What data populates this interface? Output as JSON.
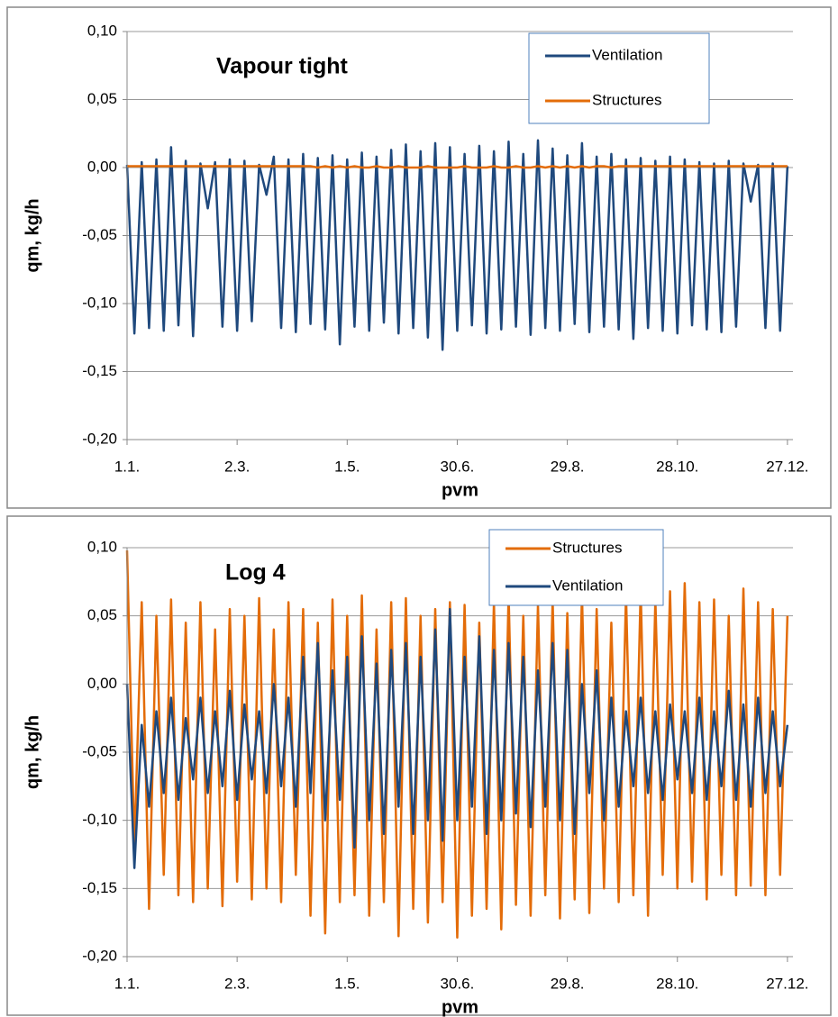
{
  "chart_data": [
    {
      "type": "line",
      "title": "Vapour tight",
      "xlabel": "pvm",
      "ylabel": "qm, kg/h",
      "grid": true,
      "legend": "upper right",
      "xlim": [
        0,
        363
      ],
      "ylim": [
        -0.2,
        0.1
      ],
      "xticks": [
        {
          "value": 0,
          "label": "1.1."
        },
        {
          "value": 60,
          "label": "2.3."
        },
        {
          "value": 120,
          "label": "1.5."
        },
        {
          "value": 180,
          "label": "30.6."
        },
        {
          "value": 240,
          "label": "29.8."
        },
        {
          "value": 300,
          "label": "28.10."
        },
        {
          "value": 360,
          "label": "27.12."
        }
      ],
      "yticks": [
        {
          "value": -0.2,
          "label": "-0,20"
        },
        {
          "value": -0.15,
          "label": "-0,15"
        },
        {
          "value": -0.1,
          "label": "-0,10"
        },
        {
          "value": -0.05,
          "label": "-0,05"
        },
        {
          "value": 0,
          "label": "0,00"
        },
        {
          "value": 0.05,
          "label": "0,05"
        },
        {
          "value": 0.1,
          "label": "0,10"
        }
      ],
      "x": [
        0,
        4,
        8,
        12,
        16,
        20,
        24,
        28,
        32,
        36,
        40,
        44,
        48,
        52,
        56,
        60,
        64,
        68,
        72,
        76,
        80,
        84,
        88,
        92,
        96,
        100,
        104,
        108,
        112,
        116,
        120,
        124,
        128,
        132,
        136,
        140,
        144,
        148,
        152,
        156,
        160,
        164,
        168,
        172,
        176,
        180,
        184,
        188,
        192,
        196,
        200,
        204,
        208,
        212,
        216,
        220,
        224,
        228,
        232,
        236,
        240,
        244,
        248,
        252,
        256,
        260,
        264,
        268,
        272,
        276,
        280,
        284,
        288,
        292,
        296,
        300,
        304,
        308,
        312,
        316,
        320,
        324,
        328,
        332,
        336,
        340,
        344,
        348,
        352,
        356,
        360
      ],
      "series": [
        {
          "name": "Ventilation",
          "color": "#1f497d",
          "values": [
            0.002,
            -0.122,
            0.004,
            -0.118,
            0.006,
            -0.12,
            0.015,
            -0.116,
            0.005,
            -0.124,
            0.003,
            -0.03,
            0.004,
            -0.117,
            0.006,
            -0.12,
            0.005,
            -0.113,
            0.002,
            -0.02,
            0.008,
            -0.118,
            0.006,
            -0.121,
            0.01,
            -0.115,
            0.007,
            -0.119,
            0.009,
            -0.13,
            0.006,
            -0.117,
            0.011,
            -0.12,
            0.008,
            -0.114,
            0.013,
            -0.122,
            0.017,
            -0.118,
            0.012,
            -0.125,
            0.018,
            -0.134,
            0.015,
            -0.12,
            0.01,
            -0.116,
            0.016,
            -0.122,
            0.012,
            -0.119,
            0.019,
            -0.117,
            0.01,
            -0.123,
            0.02,
            -0.118,
            0.014,
            -0.12,
            0.009,
            -0.115,
            0.018,
            -0.121,
            0.008,
            -0.117,
            0.01,
            -0.119,
            0.006,
            -0.126,
            0.007,
            -0.118,
            0.005,
            -0.12,
            0.008,
            -0.122,
            0.006,
            -0.116,
            0.004,
            -0.119,
            0.003,
            -0.121,
            0.005,
            -0.117,
            0.003,
            -0.025,
            0.002,
            -0.118,
            0.003,
            -0.12,
            0.001
          ]
        },
        {
          "name": "Structures",
          "color": "#e36c09",
          "values": [
            0.001,
            0.001,
            0.001,
            0.001,
            0.001,
            0.001,
            0.001,
            0.001,
            0.001,
            0.001,
            0.001,
            0.001,
            0.001,
            0.001,
            0.001,
            0.001,
            0.001,
            0.001,
            0.001,
            0.001,
            0.001,
            0.001,
            0.001,
            0.001,
            0.001,
            0.001,
            0,
            0.001,
            0,
            0.001,
            0,
            0.001,
            0,
            0,
            0.001,
            0,
            0,
            0.001,
            0,
            0,
            0,
            0.001,
            0,
            0,
            0,
            0,
            0.001,
            0,
            0,
            0,
            0.001,
            0,
            0,
            0.001,
            0,
            0,
            0.001,
            0,
            0.001,
            0,
            0.001,
            0,
            0.001,
            0,
            0.001,
            0.001,
            0,
            0.001,
            0.001,
            0.001,
            0.001,
            0.001,
            0.001,
            0.001,
            0.001,
            0.001,
            0.001,
            0.001,
            0.001,
            0.001,
            0.001,
            0.001,
            0.001,
            0.001,
            0.001,
            0.001,
            0.001,
            0.001,
            0.001,
            0.001,
            0.001
          ]
        }
      ]
    },
    {
      "type": "line",
      "title": "Log 4",
      "xlabel": "pvm",
      "ylabel": "qm, kg/h",
      "grid": true,
      "legend": "upper right",
      "xlim": [
        0,
        363
      ],
      "ylim": [
        -0.2,
        0.1
      ],
      "xticks": [
        {
          "value": 0,
          "label": "1.1."
        },
        {
          "value": 60,
          "label": "2.3."
        },
        {
          "value": 120,
          "label": "1.5."
        },
        {
          "value": 180,
          "label": "30.6."
        },
        {
          "value": 240,
          "label": "29.8."
        },
        {
          "value": 300,
          "label": "28.10."
        },
        {
          "value": 360,
          "label": "27.12."
        }
      ],
      "yticks": [
        {
          "value": -0.2,
          "label": "-0,20"
        },
        {
          "value": -0.15,
          "label": "-0,15"
        },
        {
          "value": -0.1,
          "label": "-0,10"
        },
        {
          "value": -0.05,
          "label": "-0,05"
        },
        {
          "value": 0,
          "label": "0,00"
        },
        {
          "value": 0.05,
          "label": "0,05"
        },
        {
          "value": 0.1,
          "label": "0,10"
        }
      ],
      "x": [
        0,
        4,
        8,
        12,
        16,
        20,
        24,
        28,
        32,
        36,
        40,
        44,
        48,
        52,
        56,
        60,
        64,
        68,
        72,
        76,
        80,
        84,
        88,
        92,
        96,
        100,
        104,
        108,
        112,
        116,
        120,
        124,
        128,
        132,
        136,
        140,
        144,
        148,
        152,
        156,
        160,
        164,
        168,
        172,
        176,
        180,
        184,
        188,
        192,
        196,
        200,
        204,
        208,
        212,
        216,
        220,
        224,
        228,
        232,
        236,
        240,
        244,
        248,
        252,
        256,
        260,
        264,
        268,
        272,
        276,
        280,
        284,
        288,
        292,
        296,
        300,
        304,
        308,
        312,
        316,
        320,
        324,
        328,
        332,
        336,
        340,
        344,
        348,
        352,
        356,
        360
      ],
      "series": [
        {
          "name": "Structures",
          "color": "#e36c09",
          "values": [
            0.098,
            -0.12,
            0.06,
            -0.165,
            0.05,
            -0.14,
            0.062,
            -0.155,
            0.045,
            -0.16,
            0.06,
            -0.15,
            0.04,
            -0.163,
            0.055,
            -0.145,
            0.05,
            -0.158,
            0.063,
            -0.15,
            0.04,
            -0.16,
            0.06,
            -0.14,
            0.055,
            -0.17,
            0.045,
            -0.183,
            0.062,
            -0.16,
            0.05,
            -0.155,
            0.065,
            -0.17,
            0.04,
            -0.16,
            0.06,
            -0.185,
            0.063,
            -0.165,
            0.05,
            -0.175,
            0.055,
            -0.16,
            0.06,
            -0.186,
            0.058,
            -0.17,
            0.045,
            -0.165,
            0.06,
            -0.18,
            0.066,
            -0.162,
            0.05,
            -0.17,
            0.058,
            -0.155,
            0.062,
            -0.172,
            0.052,
            -0.158,
            0.066,
            -0.168,
            0.055,
            -0.15,
            0.045,
            -0.16,
            0.066,
            -0.155,
            0.07,
            -0.17,
            0.062,
            -0.14,
            0.068,
            -0.15,
            0.074,
            -0.145,
            0.06,
            -0.158,
            0.062,
            -0.14,
            0.05,
            -0.155,
            0.07,
            -0.148,
            0.06,
            -0.155,
            0.055,
            -0.14,
            0.05
          ]
        },
        {
          "name": "Ventilation",
          "color": "#1f497d",
          "values": [
            0,
            -0.135,
            -0.03,
            -0.09,
            -0.02,
            -0.08,
            -0.01,
            -0.085,
            -0.025,
            -0.07,
            -0.01,
            -0.08,
            -0.02,
            -0.075,
            -0.005,
            -0.085,
            -0.015,
            -0.07,
            -0.02,
            -0.08,
            0,
            -0.075,
            -0.01,
            -0.09,
            0.02,
            -0.08,
            0.03,
            -0.1,
            0.01,
            -0.085,
            0.02,
            -0.12,
            0.035,
            -0.1,
            0.015,
            -0.11,
            0.025,
            -0.09,
            0.03,
            -0.11,
            0.02,
            -0.1,
            0.04,
            -0.115,
            0.055,
            -0.1,
            0.02,
            -0.09,
            0.035,
            -0.11,
            0.025,
            -0.1,
            0.03,
            -0.095,
            0.02,
            -0.105,
            0.01,
            -0.09,
            0.03,
            -0.1,
            0.025,
            -0.11,
            0,
            -0.08,
            0.01,
            -0.1,
            -0.01,
            -0.09,
            -0.02,
            -0.075,
            -0.01,
            -0.08,
            -0.02,
            -0.085,
            -0.015,
            -0.07,
            -0.02,
            -0.08,
            -0.01,
            -0.085,
            -0.02,
            -0.075,
            -0.005,
            -0.085,
            -0.015,
            -0.09,
            -0.01,
            -0.08,
            -0.02,
            -0.075,
            -0.03
          ]
        }
      ]
    }
  ]
}
